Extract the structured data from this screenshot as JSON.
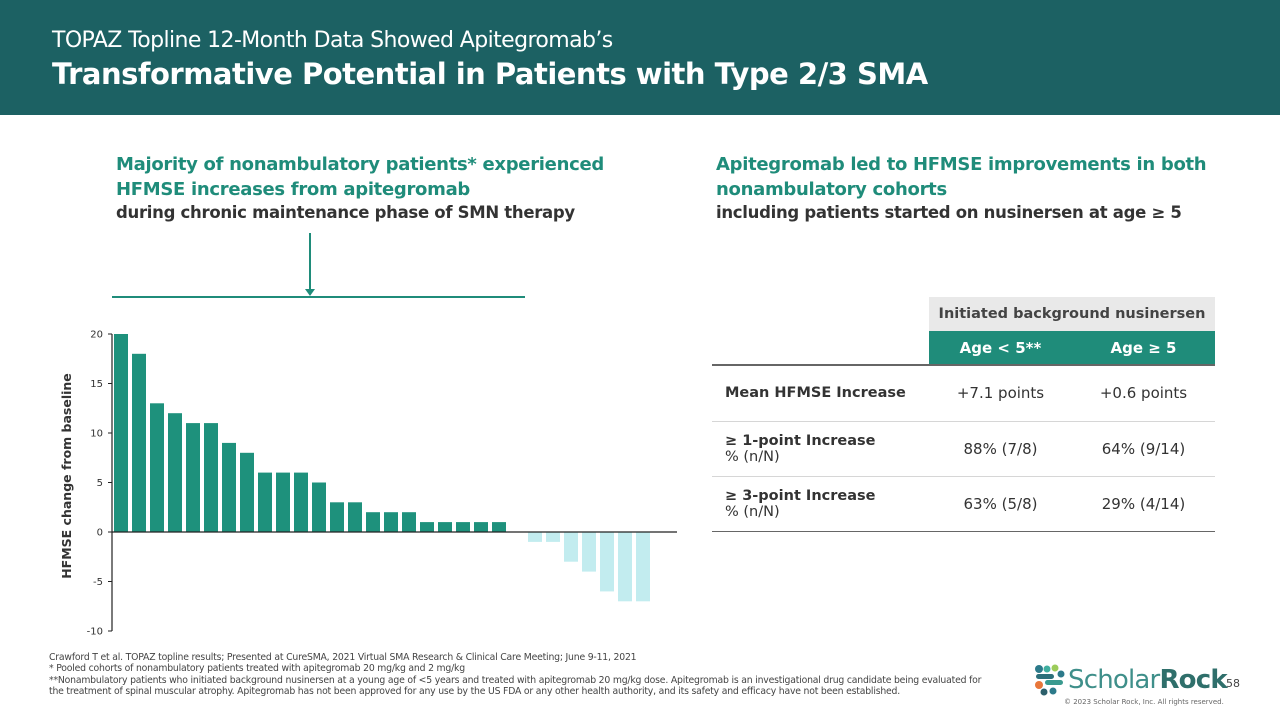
{
  "header": {
    "subtitle": "TOPAZ Topline 12-Month Data Showed Apitegromab’s",
    "title": "Transformative Potential in Patients with Type 2/3 SMA"
  },
  "left_panel": {
    "headline_line1": "Majority of nonambulatory patients* experienced",
    "headline_line2": "HFMSE increases from apitegromab",
    "subline": "during chronic maintenance phase of SMN therapy"
  },
  "right_panel": {
    "headline_line1": "Apitegromab led to HFMSE improvements in both",
    "headline_line2": "nonambulatory cohorts",
    "subline": "including patients started on nusinersen at age ≥ 5"
  },
  "chart_data": {
    "type": "bar",
    "title": "",
    "xlabel": "",
    "ylabel": "HFMSE change from baseline",
    "ylim": [
      -10,
      20
    ],
    "yticks": [
      20,
      15,
      10,
      5,
      0,
      -5,
      -10
    ],
    "grid": false,
    "legend": "none",
    "values": [
      20,
      18,
      13,
      12,
      11,
      11,
      9,
      8,
      6,
      6,
      6,
      5,
      3,
      3,
      2,
      2,
      2,
      1,
      1,
      1,
      1,
      1,
      0,
      -1,
      -1,
      -3,
      -4,
      -6,
      -7,
      -7
    ],
    "colors": {
      "positive": "#1e917c",
      "negative": "#c2ecef"
    }
  },
  "table": {
    "group_header": "Initiated background nusinersen",
    "columns": [
      "Age < 5**",
      "Age ≥ 5"
    ],
    "rows": [
      {
        "label": "Mean HFMSE Increase",
        "sublabel": "",
        "values": [
          "+7.1 points",
          "+0.6 points"
        ]
      },
      {
        "label": "≥ 1-point Increase",
        "sublabel": "% (n/N)",
        "values": [
          "88% (7/8)",
          "64% (9/14)"
        ]
      },
      {
        "label": "≥ 3-point Increase",
        "sublabel": "% (n/N)",
        "values": [
          "63% (5/8)",
          "29% (4/14)"
        ]
      }
    ]
  },
  "footnotes": [
    "Crawford T et al. TOPAZ topline results; Presented at CureSMA, 2021 Virtual SMA Research & Clinical Care Meeting; June 9-11, 2021",
    "* Pooled cohorts of nonambulatory patients treated with apitegromab 20 mg/kg and 2 mg/kg",
    "**Nonambulatory patients who initiated background nusinersen at a young age of <5 years and treated with apitegromab 20 mg/kg dose. Apitegromab is an investigational drug candidate being evaluated for the treatment of spinal muscular atrophy. Apitegromab has not been approved for any use by the US FDA or any other health authority, and its safety and efficacy have not been established."
  ],
  "brand": {
    "name_light": "Scholar",
    "name_bold": "Rock",
    "trademark": "™",
    "copyright": "© 2023 Scholar Rock, Inc. All rights reserved.",
    "logo_icon": "scholar-rock-logo-icon"
  },
  "page_number": "58"
}
